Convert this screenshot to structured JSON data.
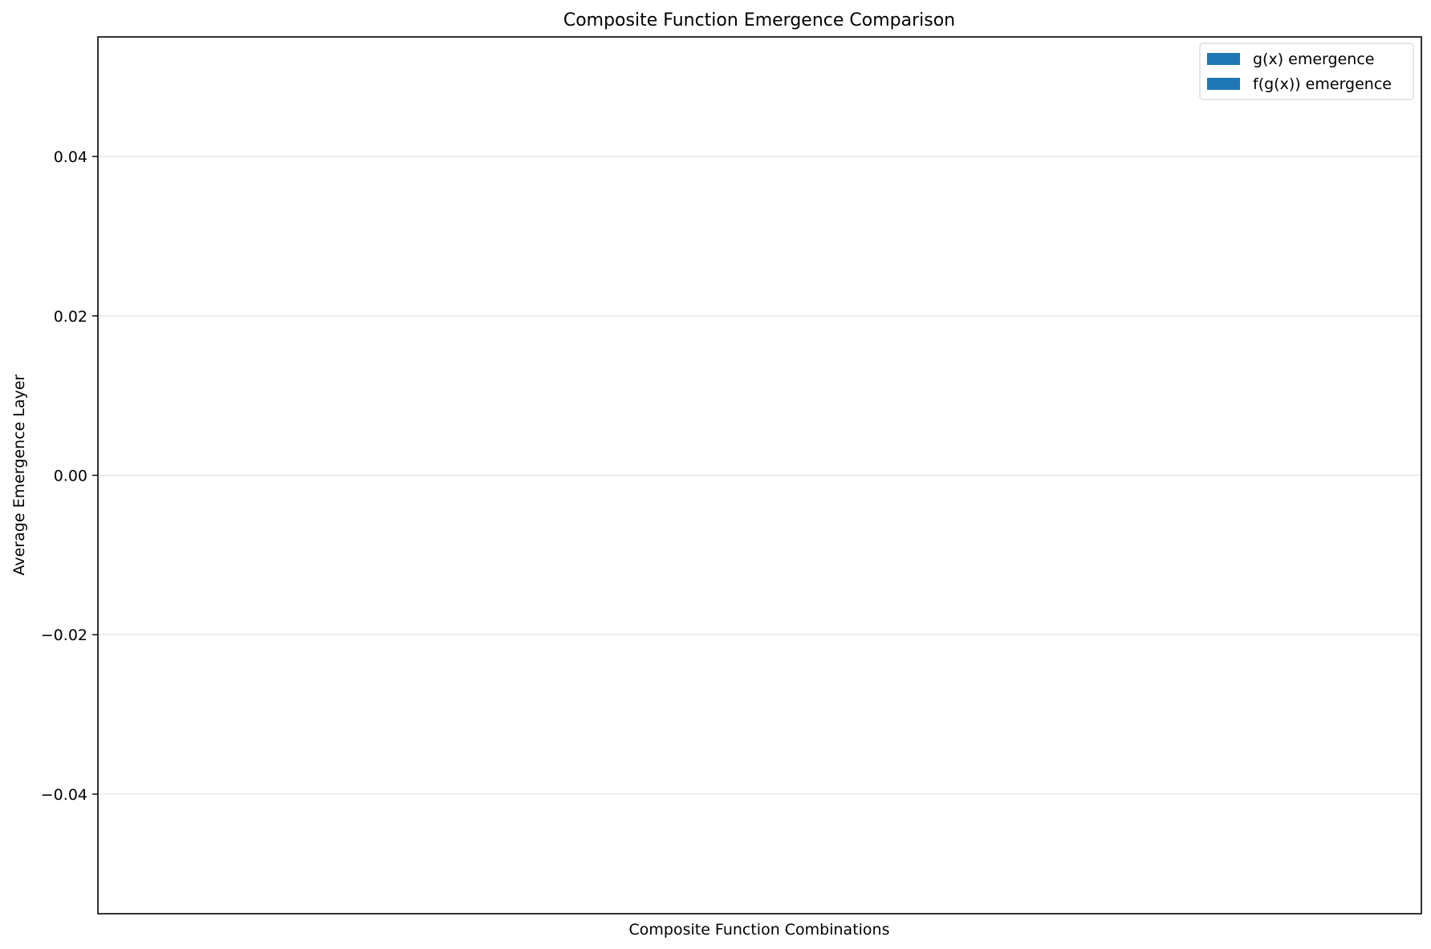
{
  "chart_data": {
    "type": "bar",
    "title": "Composite Function Emergence Comparison",
    "xlabel": "Composite Function Combinations",
    "ylabel": "Average Emergence Layer",
    "categories": [],
    "series": [
      {
        "name": "g(x) emergence",
        "values": [],
        "color": "#1f77b4"
      },
      {
        "name": "f(g(x)) emergence",
        "values": [],
        "color": "#1f77b4"
      }
    ],
    "ylim": [
      -0.055,
      0.055
    ],
    "yticks": [
      -0.04,
      -0.02,
      0.0,
      0.02,
      0.04
    ],
    "ytick_labels": [
      "−0.04",
      "−0.02",
      "0.00",
      "0.02",
      "0.04"
    ],
    "grid": "y",
    "legend_position": "upper right"
  }
}
